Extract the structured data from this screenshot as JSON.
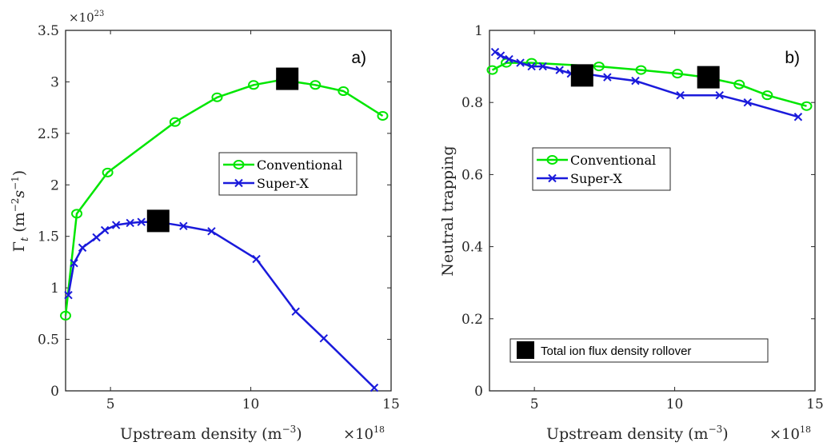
{
  "figure": {
    "marker_legend_label": "Total ion flux density rollover"
  },
  "colors": {
    "conventional": "#00e600",
    "superx": "#1a1adb",
    "axis": "#262626",
    "rollover": "#000000"
  },
  "chart_data": [
    {
      "type": "line",
      "panel_label": "a)",
      "xlabel": "Upstream density",
      "xlabel_unit": "(m",
      "xlabel_unit_exp": "−3",
      "xlabel_unit_close": ")",
      "x_multiplier": "×10",
      "x_multiplier_exp": "18",
      "ylabel": "Γ",
      "ylabel_sub": "t",
      "ylabel_unit": "(m",
      "ylabel_unit_exp1": "−2",
      "ylabel_unit_mid": "s",
      "ylabel_unit_exp2": "−1",
      "ylabel_unit_close": ")",
      "y_multiplier": "×10",
      "y_multiplier_exp": "23",
      "xlim": [
        3.4,
        15
      ],
      "ylim": [
        0,
        3.5
      ],
      "xticks": [
        5,
        10,
        15
      ],
      "xtick_labels": [
        "5",
        "10",
        "15"
      ],
      "yticks": [
        0,
        0.5,
        1,
        1.5,
        2,
        2.5,
        3,
        3.5
      ],
      "ytick_labels": [
        "0",
        "0.5",
        "1",
        "1.5",
        "2",
        "2.5",
        "3",
        "3.5"
      ],
      "legend_position": "center-right",
      "series": [
        {
          "name": "Conventional",
          "marker": "circle",
          "x": [
            3.4,
            3.8,
            4.9,
            7.3,
            8.8,
            10.1,
            11.1,
            12.3,
            13.3,
            14.7
          ],
          "y": [
            0.73,
            1.72,
            2.12,
            2.61,
            2.85,
            2.97,
            3.02,
            2.97,
            2.91,
            2.67
          ]
        },
        {
          "name": "Super-X",
          "marker": "x",
          "x": [
            3.5,
            3.7,
            4.0,
            4.5,
            4.8,
            5.2,
            5.7,
            6.1,
            6.7,
            7.6,
            8.6,
            10.2,
            11.6,
            12.6,
            14.4
          ],
          "y": [
            0.93,
            1.24,
            1.39,
            1.49,
            1.56,
            1.61,
            1.63,
            1.64,
            1.64,
            1.6,
            1.55,
            1.28,
            0.77,
            0.51,
            0.03
          ]
        }
      ],
      "rollover_points": [
        {
          "x": 11.3,
          "y": 3.03
        },
        {
          "x": 6.7,
          "y": 1.65
        }
      ]
    },
    {
      "type": "line",
      "panel_label": "b)",
      "xlabel": "Upstream density",
      "xlabel_unit": "(m",
      "xlabel_unit_exp": "−3",
      "xlabel_unit_close": ")",
      "x_multiplier": "×10",
      "x_multiplier_exp": "18",
      "ylabel": "Neutral trapping",
      "xlim": [
        3.4,
        15
      ],
      "ylim": [
        0,
        1
      ],
      "xticks": [
        5,
        10,
        15
      ],
      "xtick_labels": [
        "5",
        "10",
        "15"
      ],
      "yticks": [
        0,
        0.2,
        0.4,
        0.6,
        0.8,
        1
      ],
      "ytick_labels": [
        "0",
        "0.2",
        "0.4",
        "0.6",
        "0.8",
        "1"
      ],
      "legend_position": "center-left",
      "series": [
        {
          "name": "Conventional",
          "marker": "circle",
          "x": [
            3.5,
            4.0,
            4.9,
            7.3,
            8.8,
            10.1,
            11.1,
            12.3,
            13.3,
            14.7
          ],
          "y": [
            0.89,
            0.91,
            0.91,
            0.9,
            0.89,
            0.88,
            0.87,
            0.85,
            0.82,
            0.79
          ]
        },
        {
          "name": "Super-X",
          "marker": "x",
          "x": [
            3.6,
            3.8,
            4.1,
            4.5,
            4.9,
            5.3,
            5.9,
            6.3,
            6.8,
            7.6,
            8.6,
            10.2,
            11.6,
            12.6,
            14.4
          ],
          "y": [
            0.94,
            0.93,
            0.92,
            0.91,
            0.9,
            0.9,
            0.89,
            0.88,
            0.88,
            0.87,
            0.86,
            0.82,
            0.82,
            0.8,
            0.76
          ]
        }
      ],
      "rollover_points": [
        {
          "x": 6.7,
          "y": 0.875
        },
        {
          "x": 11.2,
          "y": 0.87
        }
      ]
    }
  ]
}
